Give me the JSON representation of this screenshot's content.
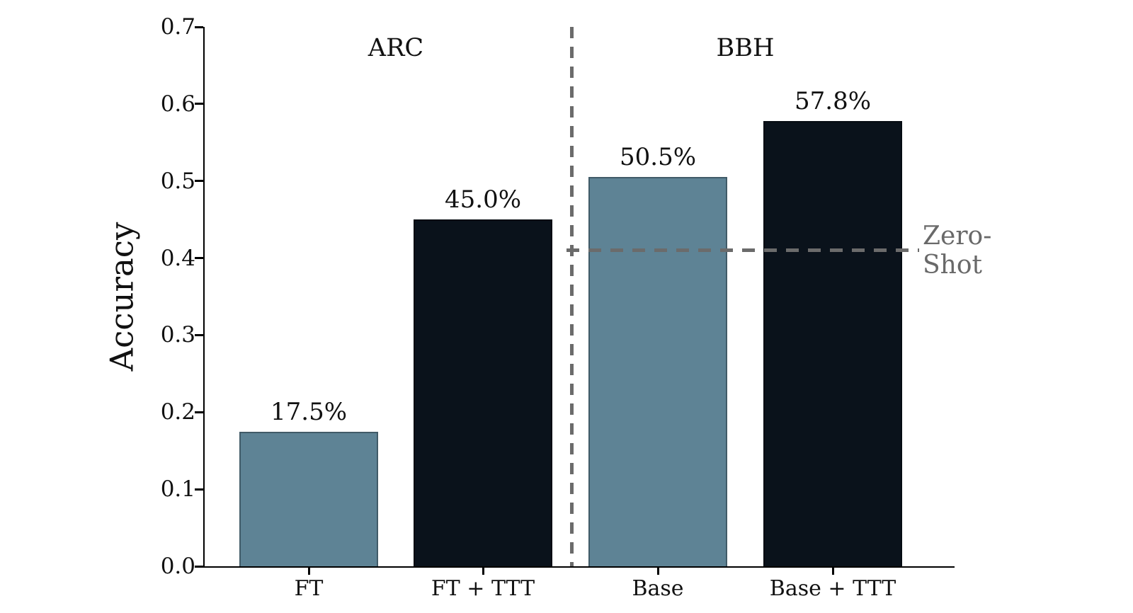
{
  "chart_data": {
    "type": "bar",
    "ylabel": "Accuracy",
    "ylim": [
      0.0,
      0.7
    ],
    "yticks": [
      0.0,
      0.1,
      0.2,
      0.3,
      0.4,
      0.5,
      0.6,
      0.7
    ],
    "grid": false,
    "categories": [
      "FT",
      "FT + TTT",
      "Base",
      "Base + TTT"
    ],
    "values": [
      0.175,
      0.45,
      0.505,
      0.578
    ],
    "groups": [
      {
        "label": "ARC",
        "bars": [
          {
            "category": "FT",
            "value": 0.175,
            "value_label": "17.5%",
            "color": "#5e8395"
          },
          {
            "category": "FT + TTT",
            "value": 0.45,
            "value_label": "45.0%",
            "color": "#0a121b"
          }
        ]
      },
      {
        "label": "BBH",
        "bars": [
          {
            "category": "Base",
            "value": 0.505,
            "value_label": "50.5%",
            "color": "#5e8395"
          },
          {
            "category": "Base + TTT",
            "value": 0.578,
            "value_label": "57.8%",
            "color": "#0a121b"
          }
        ]
      }
    ],
    "reference_line": {
      "value": 0.41,
      "label_lines": [
        "Zero-",
        "Shot"
      ],
      "scope": "BBH"
    },
    "colors": {
      "light_bar": "#5e8395",
      "dark_bar": "#0a121b",
      "dashed_line": "#6b6b6b",
      "reference_text": "#696969",
      "axis": "#000000",
      "text": "#111111"
    }
  }
}
